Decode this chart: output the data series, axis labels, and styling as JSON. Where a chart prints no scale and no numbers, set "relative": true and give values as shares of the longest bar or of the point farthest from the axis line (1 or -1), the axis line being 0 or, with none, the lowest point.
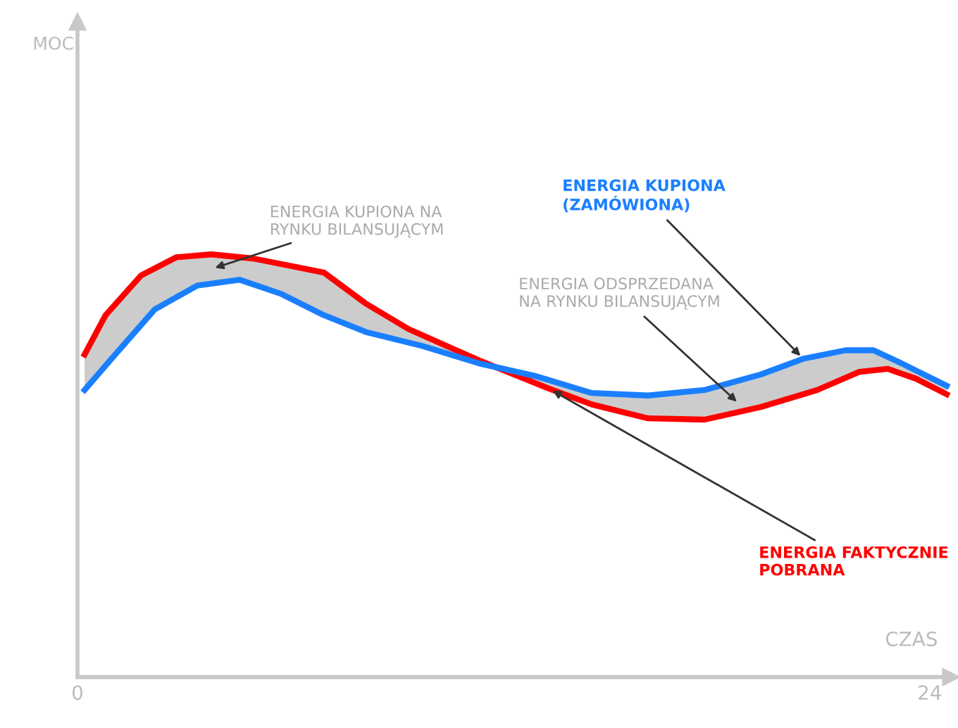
{
  "chart_data": {
    "type": "line",
    "relative": true,
    "xlabel": "CZAS",
    "xlim": [
      0,
      24.6
    ],
    "xticks": [
      0,
      24
    ],
    "grid": false,
    "legend": false,
    "marker": "none",
    "line_style": "solid",
    "series": [
      {
        "name": "ENERGIA FAKTYCZNIE\nPOBRANA",
        "color": "#ff0000",
        "x": [
          0.2,
          0.79,
          1.79,
          2.78,
          3.77,
          4.96,
          6.94,
          8.13,
          9.33,
          11.31,
          13.29,
          14.48,
          16.07,
          17.66,
          19.25,
          20.83,
          22.02,
          22.82,
          23.61,
          24.48
        ],
        "values": [
          0.763,
          0.856,
          0.95,
          0.993,
          1.0,
          0.99,
          0.957,
          0.883,
          0.823,
          0.749,
          0.682,
          0.645,
          0.612,
          0.609,
          0.639,
          0.679,
          0.722,
          0.729,
          0.706,
          0.669
        ]
      },
      {
        "name": "ENERGIA KUPIONA\n(ZAMÓWIONA)",
        "color": "#1a7fff",
        "x": [
          0.2,
          0.99,
          2.18,
          3.37,
          4.56,
          5.75,
          6.94,
          8.13,
          9.72,
          11.31,
          12.9,
          14.48,
          16.07,
          17.66,
          19.25,
          20.44,
          21.63,
          22.42,
          23.21,
          24.48
        ],
        "values": [
          0.679,
          0.756,
          0.87,
          0.926,
          0.94,
          0.906,
          0.856,
          0.816,
          0.783,
          0.742,
          0.712,
          0.672,
          0.666,
          0.679,
          0.716,
          0.753,
          0.773,
          0.773,
          0.742,
          0.689
        ]
      }
    ],
    "annotations": [
      "MOC",
      "ENERGIA KUPIONA NA\nRYNKU BILANSUJĄCYM",
      {
        "text": "ENERGIA ODSPRZEDANA\nNA RYNKU BILANSUJĄCYM",
        "x": 18.65,
        "y": 0.645
      }
    ]
  }
}
